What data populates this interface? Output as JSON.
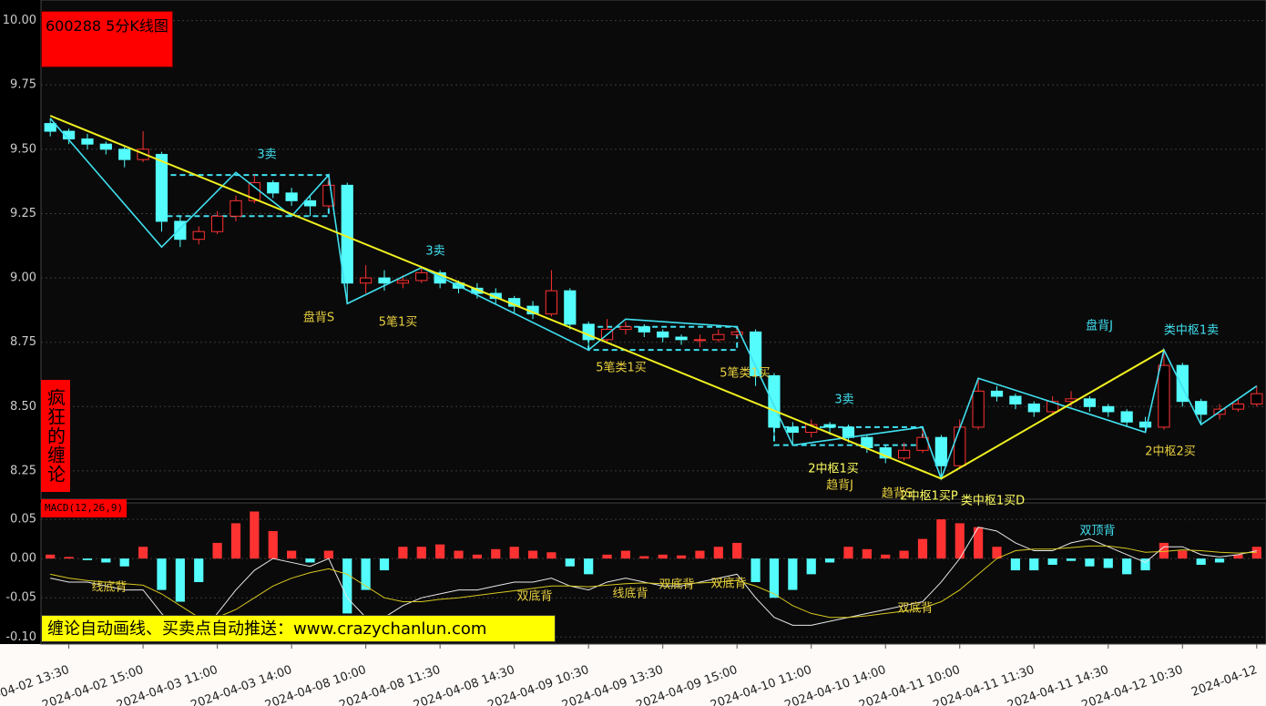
{
  "chart_data": {
    "type": "candlestick",
    "title": "600288 5分K线图",
    "side_label": "疯狂的缠论",
    "banner": "缠论自动画线、买卖点自动推送：www.crazychanlun.com",
    "up_color": "#ff3232",
    "down_color": "#54fcfc",
    "ylim": [
      8.14,
      10.08
    ],
    "yticks": [
      {
        "value": 8.25,
        "label": "8.25"
      },
      {
        "value": 8.5,
        "label": "8.50"
      },
      {
        "value": 8.75,
        "label": "8.75"
      },
      {
        "value": 9,
        "label": "9.00"
      },
      {
        "value": 9.25,
        "label": "9.25"
      },
      {
        "value": 9.5,
        "label": "9.50"
      },
      {
        "value": 9.75,
        "label": "9.75"
      },
      {
        "value": 10,
        "label": "10.00"
      }
    ],
    "grid": true,
    "categories": [
      null,
      "2024-04-02 13:30",
      null,
      null,
      null,
      "2024-04-02 15:00",
      null,
      null,
      null,
      "2024-04-03 11:00",
      null,
      null,
      null,
      "2024-04-03 14:00",
      null,
      null,
      null,
      "2024-04-08 10:00",
      null,
      null,
      null,
      "2024-04-08 11:30",
      null,
      null,
      null,
      "2024-04-08 14:30",
      null,
      null,
      null,
      "2024-04-09 10:30",
      null,
      null,
      null,
      "2024-04-09 13:30",
      null,
      null,
      null,
      "2024-04-09 15:00",
      null,
      null,
      null,
      "2024-04-10 11:00",
      null,
      null,
      null,
      "2024-04-10 14:00",
      null,
      null,
      null,
      "2024-04-11 10:00",
      null,
      null,
      null,
      "2024-04-11 11:30",
      null,
      null,
      null,
      "2024-04-11 14:30",
      null,
      null,
      null,
      "2024-04-12 10:30",
      null,
      null,
      null,
      "2024-04-12",
      null
    ],
    "candles": [
      [
        9.6,
        9.62,
        9.55,
        9.57
      ],
      [
        9.57,
        9.58,
        9.52,
        9.54
      ],
      [
        9.54,
        9.56,
        9.5,
        9.52
      ],
      [
        9.52,
        9.53,
        9.48,
        9.5
      ],
      [
        9.5,
        9.51,
        9.43,
        9.46
      ],
      [
        9.46,
        9.57,
        9.45,
        9.5
      ],
      [
        9.48,
        9.49,
        9.18,
        9.22
      ],
      [
        9.22,
        9.24,
        9.12,
        9.15
      ],
      [
        9.15,
        9.2,
        9.13,
        9.18
      ],
      [
        9.18,
        9.26,
        9.17,
        9.24
      ],
      [
        9.24,
        9.32,
        9.22,
        9.3
      ],
      [
        9.3,
        9.4,
        9.29,
        9.37
      ],
      [
        9.37,
        9.38,
        9.31,
        9.33
      ],
      [
        9.33,
        9.35,
        9.28,
        9.3
      ],
      [
        9.3,
        9.32,
        9.24,
        9.28
      ],
      [
        9.28,
        9.4,
        9.27,
        9.36
      ],
      [
        9.36,
        9.37,
        8.9,
        8.98
      ],
      [
        8.98,
        9.05,
        8.94,
        9.0
      ],
      [
        9.0,
        9.03,
        8.95,
        8.98
      ],
      [
        8.98,
        9.01,
        8.96,
        8.99
      ],
      [
        8.99,
        9.04,
        8.98,
        9.02
      ],
      [
        9.02,
        9.03,
        8.96,
        8.98
      ],
      [
        8.98,
        8.99,
        8.94,
        8.96
      ],
      [
        8.96,
        8.98,
        8.92,
        8.94
      ],
      [
        8.94,
        8.96,
        8.9,
        8.92
      ],
      [
        8.92,
        8.93,
        8.86,
        8.89
      ],
      [
        8.89,
        8.91,
        8.84,
        8.86
      ],
      [
        8.86,
        9.03,
        8.85,
        8.95
      ],
      [
        8.95,
        8.96,
        8.8,
        8.82
      ],
      [
        8.82,
        8.83,
        8.72,
        8.76
      ],
      [
        8.76,
        8.84,
        8.75,
        8.8
      ],
      [
        8.8,
        8.83,
        8.78,
        8.81
      ],
      [
        8.81,
        8.82,
        8.77,
        8.79
      ],
      [
        8.79,
        8.8,
        8.75,
        8.77
      ],
      [
        8.77,
        8.78,
        8.74,
        8.76
      ],
      [
        8.76,
        8.78,
        8.73,
        8.76
      ],
      [
        8.76,
        8.8,
        8.75,
        8.78
      ],
      [
        8.78,
        8.81,
        8.77,
        8.79
      ],
      [
        8.79,
        8.8,
        8.58,
        8.62
      ],
      [
        8.62,
        8.63,
        8.38,
        8.42
      ],
      [
        8.42,
        8.44,
        8.35,
        8.4
      ],
      [
        8.4,
        8.45,
        8.38,
        8.43
      ],
      [
        8.43,
        8.44,
        8.39,
        8.42
      ],
      [
        8.42,
        8.43,
        8.36,
        8.38
      ],
      [
        8.38,
        8.39,
        8.32,
        8.34
      ],
      [
        8.34,
        8.35,
        8.28,
        8.3
      ],
      [
        8.3,
        8.36,
        8.29,
        8.33
      ],
      [
        8.33,
        8.42,
        8.32,
        8.38
      ],
      [
        8.38,
        8.39,
        8.22,
        8.27
      ],
      [
        8.27,
        8.45,
        8.26,
        8.42
      ],
      [
        8.42,
        8.61,
        8.41,
        8.56
      ],
      [
        8.56,
        8.58,
        8.52,
        8.54
      ],
      [
        8.54,
        8.55,
        8.49,
        8.51
      ],
      [
        8.51,
        8.52,
        8.46,
        8.48
      ],
      [
        8.48,
        8.54,
        8.47,
        8.52
      ],
      [
        8.52,
        8.56,
        8.5,
        8.53
      ],
      [
        8.53,
        8.54,
        8.48,
        8.5
      ],
      [
        8.5,
        8.51,
        8.46,
        8.48
      ],
      [
        8.48,
        8.49,
        8.42,
        8.44
      ],
      [
        8.44,
        8.46,
        8.4,
        8.42
      ],
      [
        8.42,
        8.72,
        8.41,
        8.66
      ],
      [
        8.66,
        8.67,
        8.5,
        8.52
      ],
      [
        8.52,
        8.53,
        8.43,
        8.47
      ],
      [
        8.47,
        8.51,
        8.45,
        8.49
      ],
      [
        8.49,
        8.53,
        8.48,
        8.51
      ],
      [
        8.51,
        8.58,
        8.5,
        8.55
      ]
    ],
    "strokes_color": "#40e0f0",
    "strokes": [
      [
        0,
        9.62
      ],
      [
        6,
        9.12
      ],
      [
        10,
        9.41
      ],
      [
        13,
        9.24
      ],
      [
        15,
        9.4
      ],
      [
        16,
        8.9
      ],
      [
        20,
        9.04
      ],
      [
        29,
        8.72
      ],
      [
        31,
        8.84
      ],
      [
        37,
        8.81
      ],
      [
        40,
        8.35
      ],
      [
        47,
        8.42
      ],
      [
        48,
        8.22
      ],
      [
        50,
        8.61
      ],
      [
        59,
        8.4
      ],
      [
        60,
        8.72
      ],
      [
        62,
        8.43
      ],
      [
        65,
        8.58
      ]
    ],
    "trend_color": "#f0f020",
    "trend_lines": [
      [
        [
          0,
          9.63
        ],
        [
          48,
          8.22
        ]
      ],
      [
        [
          48,
          8.22
        ],
        [
          60,
          8.72
        ]
      ]
    ],
    "pivots": [
      [
        6,
        15,
        9.24,
        9.4
      ],
      [
        29,
        37,
        8.72,
        8.81
      ],
      [
        39,
        47,
        8.35,
        8.42
      ]
    ],
    "annotations": [
      {
        "text": "3卖",
        "color": "#40e0f0"
      },
      {
        "text": "3卖",
        "color": "#40e0f0"
      },
      {
        "text": "盘背S",
        "color": "#e8d040"
      },
      {
        "text": "5笔1买",
        "color": "#e8d040"
      },
      {
        "text": "5笔类1买",
        "color": "#e8d040"
      },
      {
        "text": "5笔类1买",
        "color": "#e8d040"
      },
      {
        "text": "3卖",
        "color": "#40e0f0"
      },
      {
        "text": "2中枢1买",
        "color": "#ffff60"
      },
      {
        "text": "趋背J",
        "color": "#e8d040"
      },
      {
        "text": "趋背S",
        "color": "#e8d040"
      },
      {
        "text": "2中枢1买P",
        "color": "#ffff60"
      },
      {
        "text": "类中枢1买D",
        "color": "#ffff60"
      },
      {
        "text": "盘背J",
        "color": "#40e0f0"
      },
      {
        "text": "类中枢1卖",
        "color": "#40e0f0"
      },
      {
        "text": "2中枢2买",
        "color": "#e8d040"
      }
    ],
    "macd": {
      "label": "MACD(12,26,9)",
      "ylim": [
        -0.109,
        0.071
      ],
      "yticks": [
        {
          "value": -0.1,
          "label": "-0.10"
        },
        {
          "value": -0.05,
          "label": "-0.05"
        },
        {
          "value": 0,
          "label": "0.00"
        },
        {
          "value": 0.05,
          "label": "0.05"
        }
      ],
      "hist": [
        0.005,
        0.002,
        -0.002,
        -0.005,
        -0.01,
        0.015,
        -0.04,
        -0.055,
        -0.03,
        0.02,
        0.045,
        0.06,
        0.035,
        0.01,
        -0.005,
        0.01,
        -0.07,
        -0.04,
        -0.015,
        0.015,
        0.015,
        0.018,
        0.01,
        0.005,
        0.012,
        0.015,
        0.01,
        0.008,
        -0.01,
        -0.02,
        0.005,
        0.01,
        0.003,
        0.005,
        0.004,
        0.01,
        0.015,
        0.02,
        -0.03,
        -0.05,
        -0.04,
        -0.02,
        -0.005,
        0.015,
        0.012,
        0.005,
        0.01,
        0.025,
        0.05,
        0.045,
        0.04,
        0.015,
        -0.015,
        -0.015,
        -0.008,
        -0.003,
        -0.01,
        -0.012,
        -0.02,
        -0.015,
        0.02,
        0.01,
        -0.008,
        -0.005,
        0.005,
        0.015
      ],
      "dif_color": "#e8e8e8",
      "dea_color": "#d8c820",
      "dif": [
        -0.025,
        -0.03,
        -0.03,
        -0.035,
        -0.04,
        -0.04,
        -0.07,
        -0.095,
        -0.1,
        -0.07,
        -0.04,
        -0.015,
        0,
        -0.005,
        -0.01,
        0,
        -0.05,
        -0.075,
        -0.075,
        -0.06,
        -0.05,
        -0.045,
        -0.04,
        -0.04,
        -0.035,
        -0.03,
        -0.03,
        -0.025,
        -0.035,
        -0.04,
        -0.03,
        -0.025,
        -0.03,
        -0.035,
        -0.035,
        -0.03,
        -0.025,
        -0.02,
        -0.05,
        -0.075,
        -0.085,
        -0.085,
        -0.08,
        -0.075,
        -0.07,
        -0.065,
        -0.06,
        -0.055,
        -0.03,
        0,
        0.04,
        0.035,
        0.02,
        0.01,
        0.01,
        0.02,
        0.025,
        0.015,
        0.005,
        -0.005,
        0.015,
        0.015,
        0.005,
        0.002,
        0.005,
        0.01
      ],
      "dea": [
        -0.02,
        -0.025,
        -0.028,
        -0.03,
        -0.032,
        -0.034,
        -0.045,
        -0.06,
        -0.075,
        -0.075,
        -0.065,
        -0.05,
        -0.035,
        -0.025,
        -0.018,
        -0.013,
        -0.02,
        -0.035,
        -0.05,
        -0.055,
        -0.055,
        -0.052,
        -0.05,
        -0.047,
        -0.044,
        -0.041,
        -0.038,
        -0.035,
        -0.035,
        -0.036,
        -0.034,
        -0.032,
        -0.031,
        -0.032,
        -0.032,
        -0.031,
        -0.03,
        -0.028,
        -0.035,
        -0.045,
        -0.06,
        -0.07,
        -0.075,
        -0.075,
        -0.073,
        -0.07,
        -0.067,
        -0.063,
        -0.055,
        -0.04,
        -0.02,
        0,
        0.01,
        0.012,
        0.012,
        0.014,
        0.016,
        0.016,
        0.013,
        0.008,
        0.009,
        0.011,
        0.01,
        0.008,
        0.007,
        0.008
      ],
      "annotations": [
        {
          "text": "线底背",
          "color": "#e8d040"
        },
        {
          "text": "双底背",
          "color": "#e8d040"
        },
        {
          "text": "线底背",
          "color": "#e8d040"
        },
        {
          "text": "双底背",
          "color": "#e8d040"
        },
        {
          "text": "双底背",
          "color": "#e8d040"
        },
        {
          "text": "双底背",
          "color": "#e8d040"
        },
        {
          "text": "双顶背",
          "color": "#40e0f0"
        }
      ]
    }
  }
}
